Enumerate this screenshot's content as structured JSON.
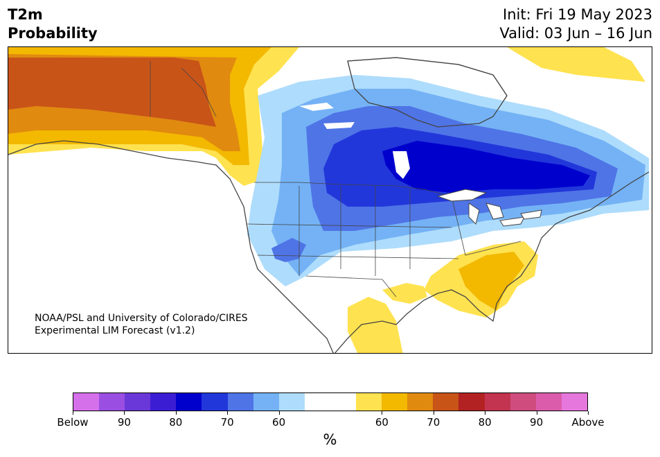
{
  "header": {
    "title_line1": "T2m",
    "title_line2": "Probability",
    "init": "Init: Fri 19 May 2023",
    "valid": "Valid: 03 Jun – 16 Jun"
  },
  "map": {
    "region": "North America",
    "credit_line1": "NOAA/PSL and University of Colorado/CIRES",
    "credit_line2": "Experimental LIM Forecast (v1.2)",
    "anomalies": [
      {
        "area": "Alaska and Yukon",
        "category": "above",
        "level": "70"
      },
      {
        "area": "British Columbia coast",
        "category": "above",
        "level": "60"
      },
      {
        "area": "Hudson Bay and Ontario",
        "category": "below",
        "level": "80"
      },
      {
        "area": "Northern Plains",
        "category": "below",
        "level": "70"
      },
      {
        "area": "Great Basin",
        "category": "below",
        "level": "60"
      },
      {
        "area": "Southeast US",
        "category": "above",
        "level": "60"
      },
      {
        "area": "Florida",
        "category": "above",
        "level": "60"
      },
      {
        "area": "Northern Mexico",
        "category": "above",
        "level": "50"
      }
    ]
  },
  "colorbar": {
    "colors": [
      "#d56fea",
      "#9a4fe2",
      "#6a38d8",
      "#3b1dd4",
      "#0000cd",
      "#2237da",
      "#4f74e6",
      "#74b2f5",
      "#aedcfc",
      "#ffffff",
      "#ffffff",
      "#ffe24f",
      "#f3b800",
      "#e08a10",
      "#c85418",
      "#b32222",
      "#c2344f",
      "#cf4c7e",
      "#db5cab",
      "#e677dd"
    ],
    "ticks": [
      "Below",
      "90",
      "80",
      "70",
      "60",
      "60",
      "70",
      "80",
      "90",
      "Above"
    ],
    "unit": "%"
  }
}
